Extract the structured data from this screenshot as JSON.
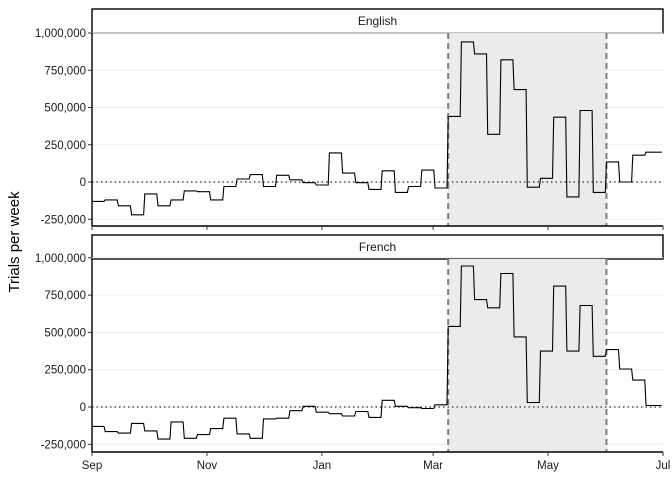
{
  "chart_data": {
    "type": "line",
    "ylabel": "Trials per week",
    "xlabel": "",
    "x_ticks": [
      "Sep",
      "Nov",
      "Jan",
      "Mar",
      "May",
      "Jul"
    ],
    "y_ticks": [
      -250000,
      0,
      250000,
      500000,
      750000,
      1000000
    ],
    "y_tick_labels": [
      "-250,000",
      "0",
      "250,000",
      "500,000",
      "750,000",
      "1,000,000"
    ],
    "ylim": [
      -300000,
      1180000
    ],
    "xlim": [
      "2020-09-01",
      "2021-07-01"
    ],
    "highlight_range": [
      "2021-03-09",
      "2021-06-01"
    ],
    "reference_line": 0,
    "grid": "horizontal-major",
    "colors": {
      "line": "#000000",
      "highlight": "#ebebeb",
      "vline": "#7f7f7f",
      "strip_border": "#000000",
      "grid": "#ebebeb"
    },
    "panels": [
      {
        "strip": "English",
        "dates": [
          "2020-09-01",
          "2020-09-08",
          "2020-09-15",
          "2020-09-22",
          "2020-09-29",
          "2020-10-06",
          "2020-10-13",
          "2020-10-20",
          "2020-10-27",
          "2020-11-03",
          "2020-11-10",
          "2020-11-17",
          "2020-11-24",
          "2020-12-01",
          "2020-12-08",
          "2020-12-15",
          "2020-12-22",
          "2020-12-29",
          "2021-01-05",
          "2021-01-12",
          "2021-01-19",
          "2021-01-26",
          "2021-02-02",
          "2021-02-09",
          "2021-02-16",
          "2021-02-23",
          "2021-03-02",
          "2021-03-09",
          "2021-03-16",
          "2021-03-23",
          "2021-03-30",
          "2021-04-06",
          "2021-04-13",
          "2021-04-20",
          "2021-04-27",
          "2021-05-04",
          "2021-05-11",
          "2021-05-18",
          "2021-05-25",
          "2021-06-01",
          "2021-06-08",
          "2021-06-15",
          "2021-06-22",
          "2021-06-29"
        ],
        "values": [
          -130000,
          -120000,
          -160000,
          -220000,
          -80000,
          -160000,
          -120000,
          -60000,
          -65000,
          -120000,
          -30000,
          20000,
          50000,
          -30000,
          45000,
          15000,
          -5000,
          -20000,
          195000,
          60000,
          -5000,
          -50000,
          75000,
          -70000,
          -30000,
          80000,
          -40000,
          440000,
          940000,
          860000,
          320000,
          820000,
          620000,
          -35000,
          25000,
          435000,
          -100000,
          480000,
          -70000,
          135000,
          0,
          180000,
          200000,
          200000
        ]
      },
      {
        "strip": "French",
        "dates": [
          "2020-09-01",
          "2020-09-08",
          "2020-09-15",
          "2020-09-22",
          "2020-09-29",
          "2020-10-06",
          "2020-10-13",
          "2020-10-20",
          "2020-10-27",
          "2020-11-03",
          "2020-11-10",
          "2020-11-17",
          "2020-11-24",
          "2020-12-01",
          "2020-12-08",
          "2020-12-15",
          "2020-12-22",
          "2020-12-29",
          "2021-01-05",
          "2021-01-12",
          "2021-01-19",
          "2021-01-26",
          "2021-02-02",
          "2021-02-09",
          "2021-02-16",
          "2021-02-23",
          "2021-03-02",
          "2021-03-09",
          "2021-03-16",
          "2021-03-23",
          "2021-03-30",
          "2021-04-06",
          "2021-04-13",
          "2021-04-20",
          "2021-04-27",
          "2021-05-04",
          "2021-05-11",
          "2021-05-18",
          "2021-05-25",
          "2021-06-01",
          "2021-06-08",
          "2021-06-15",
          "2021-06-22",
          "2021-06-29"
        ],
        "values": [
          -130000,
          -165000,
          -175000,
          -110000,
          -160000,
          -215000,
          -100000,
          -210000,
          -185000,
          -145000,
          -75000,
          -180000,
          -210000,
          -80000,
          -75000,
          -25000,
          5000,
          -35000,
          -45000,
          -60000,
          -30000,
          -70000,
          45000,
          5000,
          -5000,
          -10000,
          15000,
          540000,
          945000,
          720000,
          665000,
          895000,
          470000,
          30000,
          375000,
          810000,
          375000,
          680000,
          340000,
          385000,
          255000,
          180000,
          10000,
          10000
        ]
      }
    ]
  }
}
